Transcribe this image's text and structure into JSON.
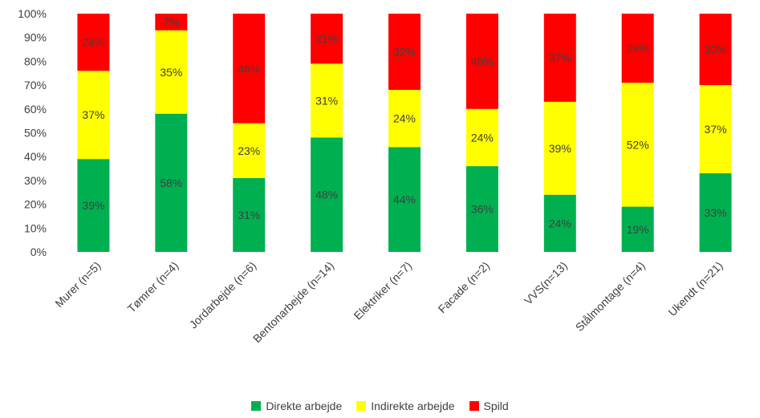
{
  "chart_data": {
    "type": "bar",
    "stacked": true,
    "categories": [
      "Murer (n=5)",
      "Tømrer (n=4)",
      "Jordarbejde (n=6)",
      "Bentonarbejde (n=14)",
      "Elektriker (n=7)",
      "Facade (n=2)",
      "VVS(n=13)",
      "Stålmontage (n=4)",
      "Ukendt (n=21)"
    ],
    "series": [
      {
        "name": "Direkte arbejde",
        "color": "#00b050",
        "values": [
          39,
          58,
          31,
          48,
          44,
          36,
          24,
          19,
          33
        ],
        "labels": [
          "39%",
          "58%",
          "31%",
          "48%",
          "44%",
          "36%",
          "24%",
          "19%",
          "33%"
        ]
      },
      {
        "name": "Indirekte arbejde",
        "color": "#ffff00",
        "values": [
          37,
          35,
          23,
          31,
          24,
          24,
          39,
          52,
          37
        ],
        "labels": [
          "37%",
          "35%",
          "23%",
          "31%",
          "24%",
          "24%",
          "39%",
          "52%",
          "37%"
        ]
      },
      {
        "name": "Spild",
        "color": "#ff0000",
        "values": [
          24,
          7,
          46,
          21,
          32,
          40,
          37,
          29,
          30
        ],
        "labels": [
          "24%",
          "7%",
          "46%",
          "21%",
          "32%",
          "40%",
          "37%",
          "29%",
          "30%"
        ]
      }
    ],
    "yticks": [
      "0%",
      "10%",
      "20%",
      "30%",
      "40%",
      "50%",
      "60%",
      "70%",
      "80%",
      "90%",
      "100%"
    ],
    "ylim": [
      0,
      100
    ],
    "grid": false,
    "legend_position": "bottom"
  }
}
